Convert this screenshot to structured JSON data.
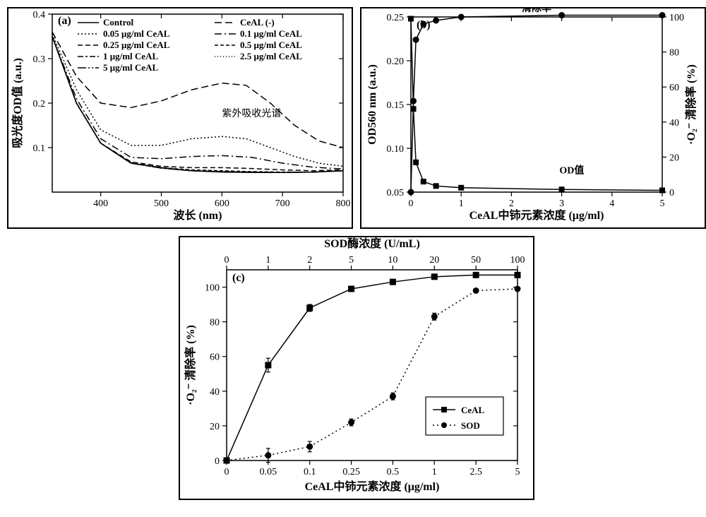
{
  "panelA": {
    "label": "(a)",
    "xlabel": "波长 (nm)",
    "ylabel": "吸光度OD值 (a.u.)",
    "xlim": [
      320,
      800
    ],
    "ylim": [
      0.0,
      0.4
    ],
    "xticks": [
      400,
      500,
      600,
      700,
      800
    ],
    "yticks": [
      0.1,
      0.2,
      0.3,
      0.4
    ],
    "annotation": "紫外吸收光谱",
    "legend": [
      {
        "label": "Control",
        "dash": "solid"
      },
      {
        "label": "CeAL (-)",
        "dash": "dashB"
      },
      {
        "label": "0.05 μg/ml CeAL",
        "dash": "dotA"
      },
      {
        "label": "0.1 μg/ml CeAL",
        "dash": "dashdotA"
      },
      {
        "label": "0.25 μg/ml CeAL",
        "dash": "dashA"
      },
      {
        "label": "0.5 μg/ml CeAL",
        "dash": "dashC"
      },
      {
        "label": "1 μg/ml CeAL",
        "dash": "dashD"
      },
      {
        "label": "2.5 μg/ml CeAL",
        "dash": "dotB"
      },
      {
        "label": "5 μg/ml CeAL",
        "dash": "dashdotB"
      }
    ],
    "series": {
      "control": {
        "dash": "solid",
        "pts": [
          [
            320,
            0.35
          ],
          [
            360,
            0.2
          ],
          [
            400,
            0.11
          ],
          [
            450,
            0.065
          ],
          [
            500,
            0.055
          ],
          [
            550,
            0.048
          ],
          [
            600,
            0.045
          ],
          [
            650,
            0.044
          ],
          [
            700,
            0.044
          ],
          [
            750,
            0.045
          ],
          [
            800,
            0.048
          ]
        ]
      },
      "ceal_neg": {
        "dash": "dashB",
        "pts": [
          [
            320,
            0.36
          ],
          [
            360,
            0.26
          ],
          [
            400,
            0.2
          ],
          [
            450,
            0.19
          ],
          [
            500,
            0.205
          ],
          [
            550,
            0.23
          ],
          [
            600,
            0.245
          ],
          [
            640,
            0.24
          ],
          [
            680,
            0.2
          ],
          [
            720,
            0.15
          ],
          [
            760,
            0.115
          ],
          [
            800,
            0.1
          ]
        ]
      },
      "c005": {
        "dash": "dotA",
        "pts": [
          [
            320,
            0.355
          ],
          [
            360,
            0.23
          ],
          [
            400,
            0.14
          ],
          [
            450,
            0.105
          ],
          [
            500,
            0.105
          ],
          [
            550,
            0.12
          ],
          [
            600,
            0.125
          ],
          [
            640,
            0.12
          ],
          [
            680,
            0.1
          ],
          [
            720,
            0.08
          ],
          [
            760,
            0.065
          ],
          [
            800,
            0.058
          ]
        ]
      },
      "c01": {
        "dash": "dashdotA",
        "pts": [
          [
            320,
            0.35
          ],
          [
            360,
            0.21
          ],
          [
            400,
            0.12
          ],
          [
            450,
            0.078
          ],
          [
            500,
            0.075
          ],
          [
            550,
            0.08
          ],
          [
            600,
            0.082
          ],
          [
            650,
            0.078
          ],
          [
            700,
            0.065
          ],
          [
            750,
            0.056
          ],
          [
            800,
            0.052
          ]
        ]
      },
      "c025": {
        "dash": "dashA",
        "pts": [
          [
            320,
            0.35
          ],
          [
            360,
            0.2
          ],
          [
            400,
            0.11
          ],
          [
            450,
            0.068
          ],
          [
            500,
            0.058
          ],
          [
            550,
            0.055
          ],
          [
            600,
            0.055
          ],
          [
            650,
            0.053
          ],
          [
            700,
            0.05
          ],
          [
            750,
            0.048
          ],
          [
            800,
            0.05
          ]
        ]
      },
      "c05": {
        "dash": "dashC",
        "pts": [
          [
            320,
            0.35
          ],
          [
            360,
            0.2
          ],
          [
            400,
            0.11
          ],
          [
            450,
            0.066
          ],
          [
            500,
            0.055
          ],
          [
            550,
            0.05
          ],
          [
            600,
            0.048
          ],
          [
            650,
            0.046
          ],
          [
            700,
            0.045
          ],
          [
            750,
            0.045
          ],
          [
            800,
            0.048
          ]
        ]
      },
      "c1": {
        "dash": "dashD",
        "pts": [
          [
            320,
            0.35
          ],
          [
            360,
            0.2
          ],
          [
            400,
            0.11
          ],
          [
            450,
            0.065
          ],
          [
            500,
            0.054
          ],
          [
            550,
            0.048
          ],
          [
            600,
            0.046
          ],
          [
            650,
            0.045
          ],
          [
            700,
            0.044
          ],
          [
            750,
            0.045
          ],
          [
            800,
            0.048
          ]
        ]
      },
      "c25": {
        "dash": "dotB",
        "pts": [
          [
            320,
            0.35
          ],
          [
            360,
            0.2
          ],
          [
            400,
            0.11
          ],
          [
            450,
            0.065
          ],
          [
            500,
            0.054
          ],
          [
            550,
            0.048
          ],
          [
            600,
            0.046
          ],
          [
            650,
            0.045
          ],
          [
            700,
            0.044
          ],
          [
            750,
            0.045
          ],
          [
            800,
            0.048
          ]
        ]
      },
      "c5": {
        "dash": "dashdotB",
        "pts": [
          [
            320,
            0.35
          ],
          [
            360,
            0.2
          ],
          [
            400,
            0.11
          ],
          [
            450,
            0.065
          ],
          [
            500,
            0.054
          ],
          [
            550,
            0.048
          ],
          [
            600,
            0.046
          ],
          [
            650,
            0.045
          ],
          [
            700,
            0.044
          ],
          [
            750,
            0.045
          ],
          [
            800,
            0.048
          ]
        ]
      }
    },
    "dashes": {
      "solid": "",
      "dashB": "10,5",
      "dotA": "2,3",
      "dashdotA": "10,4,2,4",
      "dashA": "7,4",
      "dashC": "5,3",
      "dashD": "8,3,3,3",
      "dotB": "1,3",
      "dashdotB": "12,3,2,3,2,3"
    }
  },
  "panelB": {
    "label": "(b)",
    "xlabel": "CeAL中铈元素浓度 (μg/ml)",
    "ylabel_left": "OD560 nm (a.u.)",
    "ylabel_right": "·O₂⁻ 清除率 (%)",
    "xlim": [
      0,
      5
    ],
    "ylim_left": [
      0.05,
      0.25
    ],
    "ylim_right": [
      0,
      100
    ],
    "xticks": [
      0,
      1,
      2,
      3,
      4,
      5
    ],
    "yticks_left": [
      0.05,
      0.1,
      0.15,
      0.2,
      0.25
    ],
    "yticks_right": [
      0,
      20,
      40,
      60,
      80,
      100
    ],
    "annot_top": "清除率",
    "annot_bottom": "OD值",
    "series_od": {
      "marker": "square",
      "pts": [
        [
          0,
          0.248
        ],
        [
          0.05,
          0.145
        ],
        [
          0.1,
          0.084
        ],
        [
          0.25,
          0.062
        ],
        [
          0.5,
          0.057
        ],
        [
          1,
          0.055
        ],
        [
          3,
          0.053
        ],
        [
          5,
          0.052
        ]
      ]
    },
    "series_clear": {
      "marker": "circle",
      "pts": [
        [
          0,
          0
        ],
        [
          0.05,
          52
        ],
        [
          0.1,
          87
        ],
        [
          0.25,
          96
        ],
        [
          0.5,
          98
        ],
        [
          1,
          100
        ],
        [
          3,
          101
        ],
        [
          5,
          101
        ]
      ]
    }
  },
  "panelC": {
    "label": "(c)",
    "xlabel_bottom": "CeAL中铈元素浓度 (μg/ml)",
    "xlabel_top": "SOD酶浓度 (U/mL)",
    "ylabel": "·O₂⁻ 清除率 (%)",
    "ylim": [
      0,
      110
    ],
    "yticks": [
      0,
      20,
      40,
      60,
      80,
      100
    ],
    "xcats_bottom": [
      "0",
      "0.05",
      "0.1",
      "0.25",
      "0.5",
      "1",
      "2.5",
      "5"
    ],
    "xcats_top": [
      "0",
      "1",
      "2",
      "5",
      "10",
      "20",
      "50",
      "100"
    ],
    "legend": [
      {
        "label": "CeAL",
        "marker": "square",
        "dash": "solid"
      },
      {
        "label": "SOD",
        "marker": "circle",
        "dash": "dot"
      }
    ],
    "series_ceal": {
      "pts": [
        [
          0,
          0
        ],
        [
          1,
          55
        ],
        [
          2,
          88
        ],
        [
          3,
          99
        ],
        [
          4,
          103
        ],
        [
          5,
          106
        ],
        [
          6,
          107
        ],
        [
          7,
          107
        ]
      ],
      "err": [
        0,
        4,
        2,
        1,
        1,
        1,
        1,
        1
      ]
    },
    "series_sod": {
      "pts": [
        [
          0,
          0
        ],
        [
          1,
          3
        ],
        [
          2,
          8
        ],
        [
          3,
          22
        ],
        [
          4,
          37
        ],
        [
          5,
          83
        ],
        [
          6,
          98
        ],
        [
          7,
          99
        ]
      ],
      "err": [
        0,
        4,
        3,
        2,
        2,
        2,
        1,
        1
      ]
    }
  },
  "colors": {
    "stroke": "#000000",
    "bg": "#ffffff"
  }
}
